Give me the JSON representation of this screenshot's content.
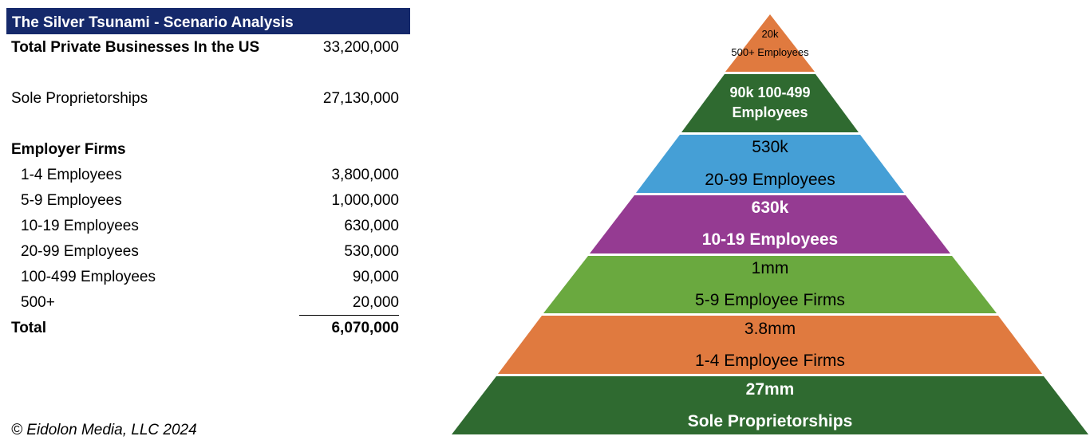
{
  "table": {
    "title": "The Silver Tsunami - Scenario Analysis",
    "total_private": {
      "label": "Total Private Businesses In the US",
      "value": "33,200,000"
    },
    "sole_prop": {
      "label": "Sole Proprietorships",
      "value": "27,130,000"
    },
    "employer_header": "Employer Firms",
    "employer_rows": [
      {
        "label": "1-4 Employees",
        "value": "3,800,000"
      },
      {
        "label": "5-9 Employees",
        "value": "1,000,000"
      },
      {
        "label": "10-19 Employees",
        "value": "630,000"
      },
      {
        "label": "20-99 Employees",
        "value": "530,000"
      },
      {
        "label": "100-499 Employees",
        "value": "90,000"
      },
      {
        "label": "500+",
        "value": "20,000"
      }
    ],
    "total": {
      "label": "Total",
      "value": "6,070,000"
    }
  },
  "copyright": "© Eidolon Media, LLC 2024",
  "pyramid": {
    "tiers": [
      {
        "line1": "20k",
        "line2": "500+ Employees",
        "color": "#e07a3f",
        "text_color": "#000000"
      },
      {
        "line1": "90k 100-499",
        "line2": "Employees",
        "color": "#2f6a30",
        "text_color": "#ffffff"
      },
      {
        "line1": "530k",
        "line2": "20-99 Employees",
        "color": "#459fd6",
        "text_color": "#000000"
      },
      {
        "line1": "630k",
        "line2": "10-19 Employees",
        "color": "#953b92",
        "text_color": "#ffffff"
      },
      {
        "line1": "1mm",
        "line2": "5-9 Employee Firms",
        "color": "#6aa93f",
        "text_color": "#000000"
      },
      {
        "line1": "3.8mm",
        "line2": "1-4 Employee Firms",
        "color": "#e07a3f",
        "text_color": "#000000"
      },
      {
        "line1": "27mm",
        "line2": "Sole Proprietorships",
        "color": "#2f6a30",
        "text_color": "#ffffff"
      }
    ]
  }
}
